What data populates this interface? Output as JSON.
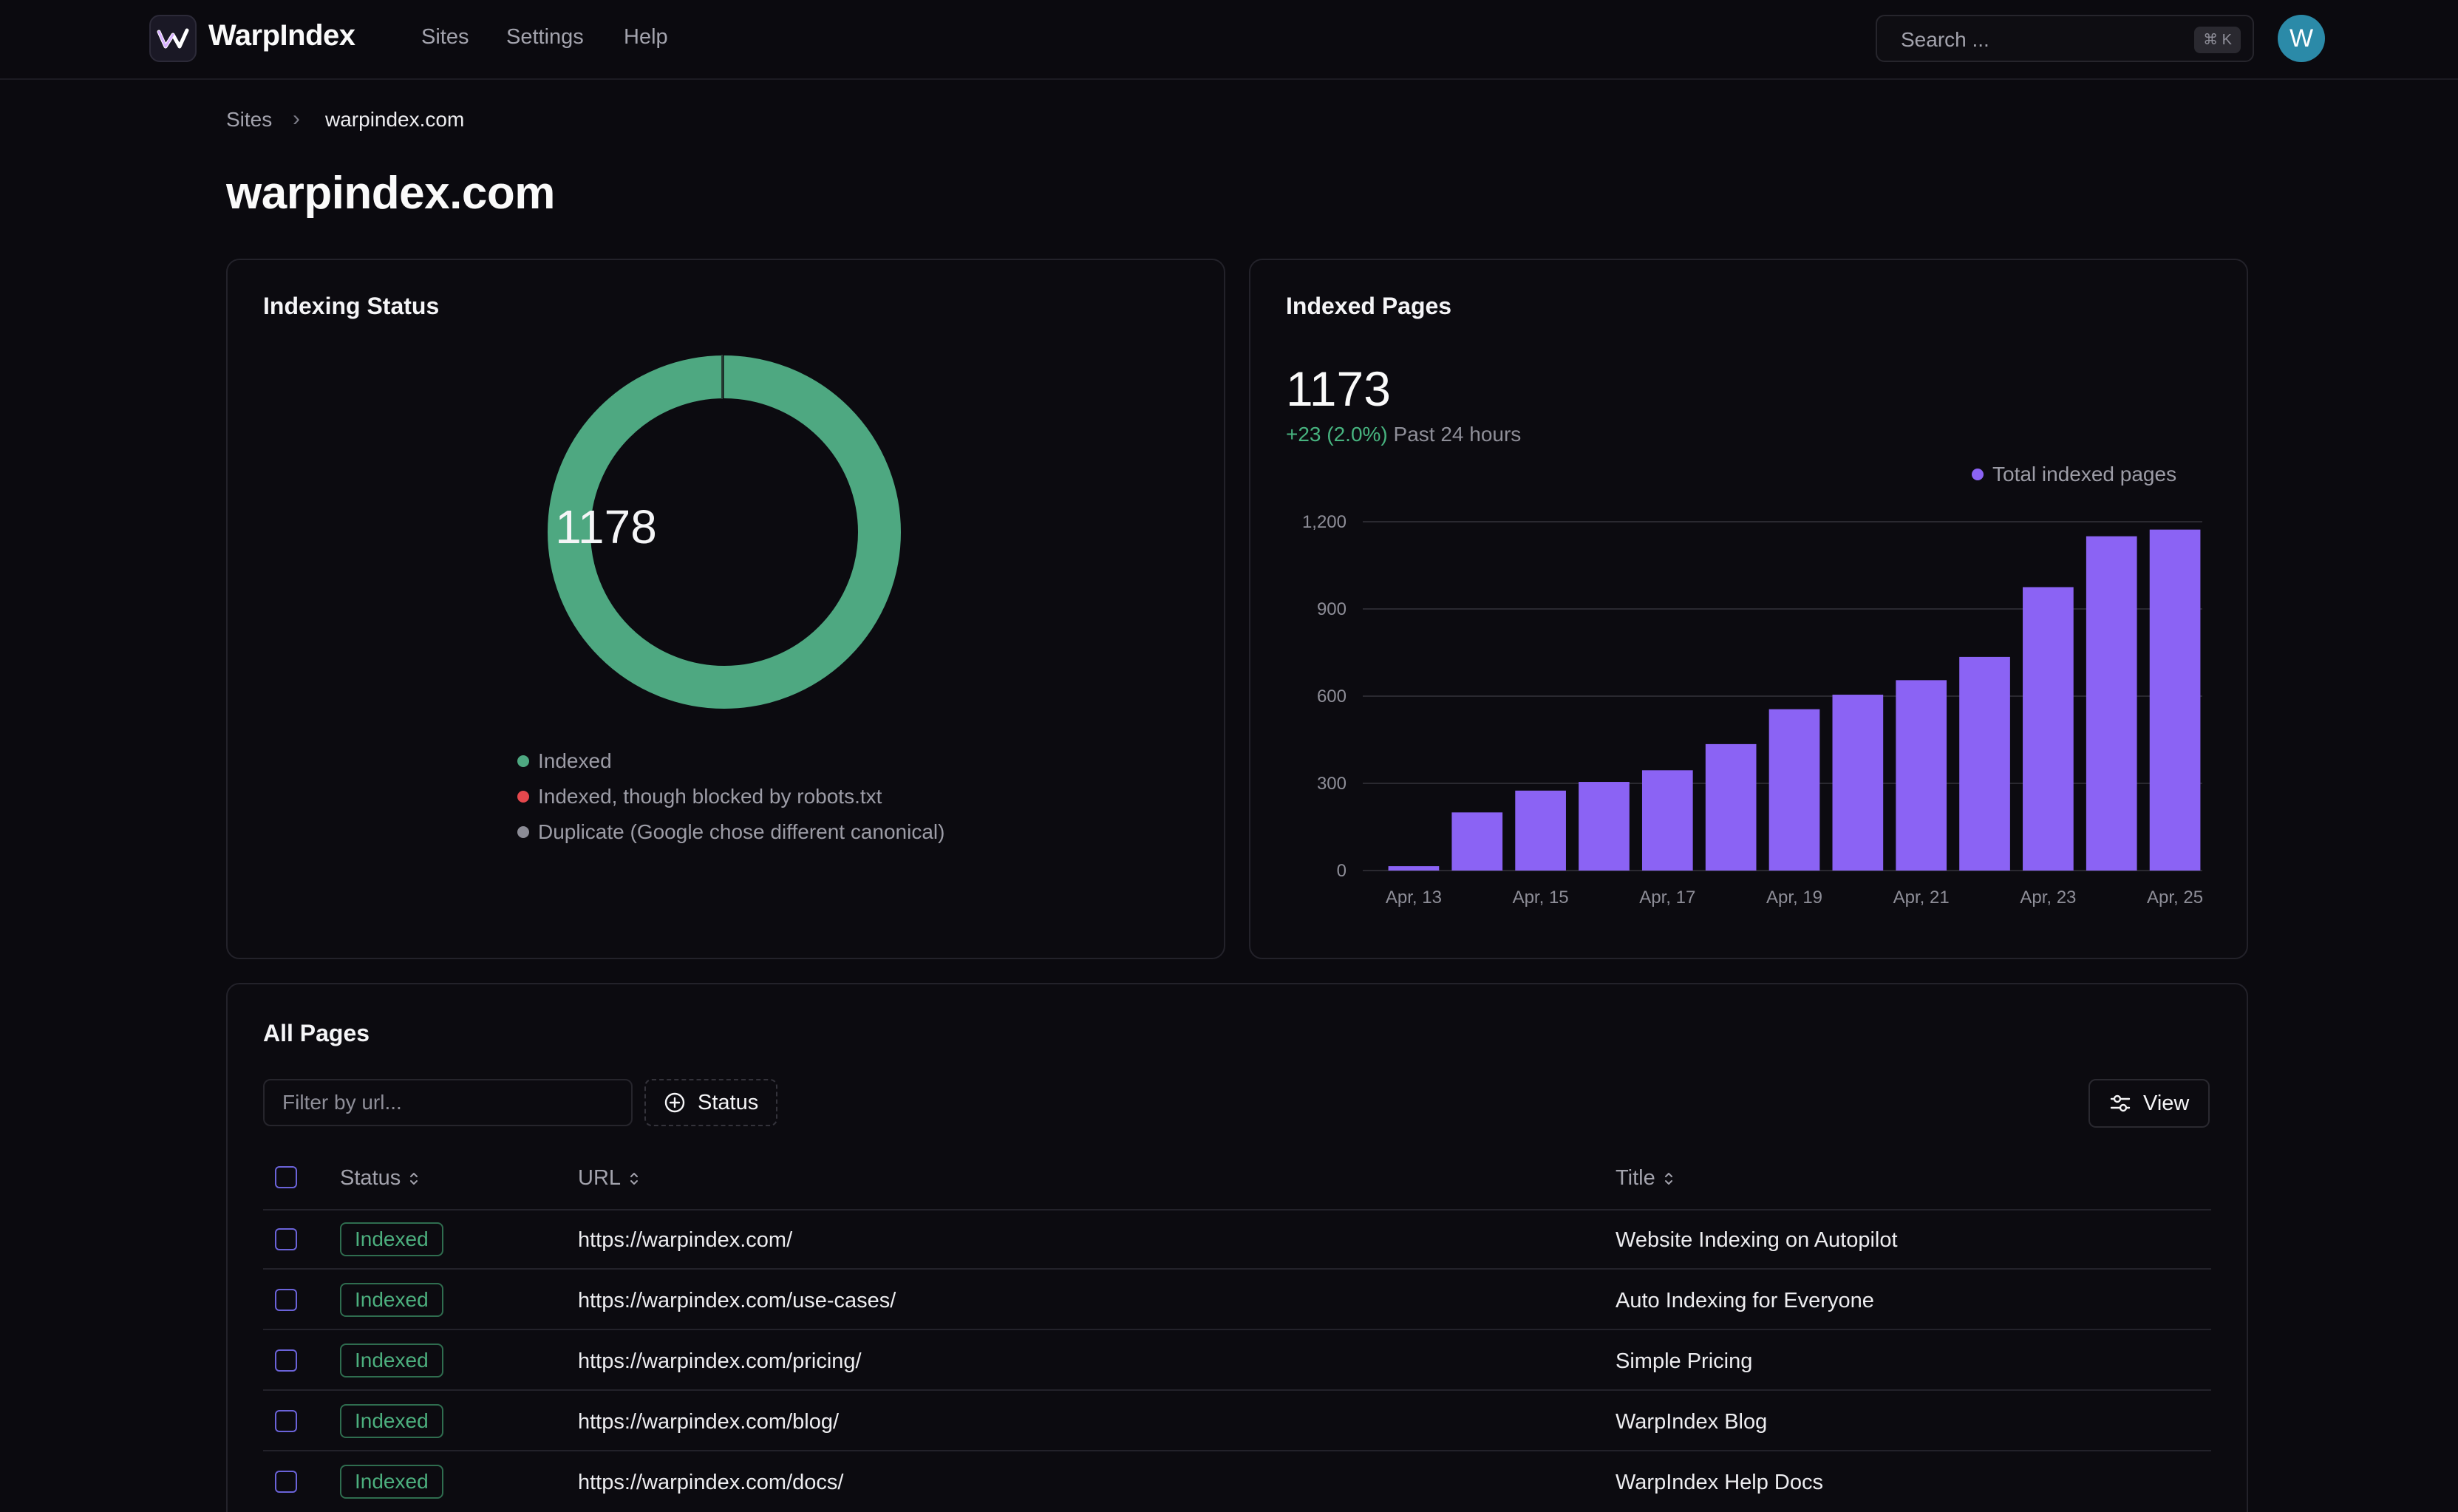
{
  "app": {
    "brand": "WarpIndex",
    "nav": [
      {
        "label": "Sites"
      },
      {
        "label": "Settings"
      },
      {
        "label": "Help"
      }
    ],
    "search": {
      "placeholder": "Search ...",
      "shortcut": "⌘ K"
    },
    "avatar_initial": "W"
  },
  "breadcrumb": {
    "root": "Sites",
    "separator": "›",
    "current": "warpindex.com"
  },
  "page_title": "warpindex.com",
  "indexing_status": {
    "title": "Indexing Status",
    "total": "1178",
    "legend": [
      {
        "label": "Indexed",
        "color": "#4ea881"
      },
      {
        "label": "Indexed, though blocked by robots.txt",
        "color": "#e5484d"
      },
      {
        "label": "Duplicate (Google chose different canonical)",
        "color": "#8c8c96"
      }
    ]
  },
  "indexed_pages": {
    "title": "Indexed Pages",
    "total": "1173",
    "delta": "+23 (2.0%)",
    "delta_suffix": "Past 24 hours",
    "series_label": "Total indexed pages",
    "series_color": "#8b63f4"
  },
  "chart_data": {
    "type": "bar",
    "title": "Indexed Pages",
    "xlabel": "",
    "ylabel": "",
    "ylim": [
      0,
      1200
    ],
    "yticks": [
      "0",
      "300",
      "600",
      "900",
      "1,200"
    ],
    "ytick_values": [
      0,
      300,
      600,
      900,
      1200
    ],
    "categories": [
      "Apr, 13",
      "Apr, 14",
      "Apr, 15",
      "Apr, 16",
      "Apr, 17",
      "Apr, 18",
      "Apr, 19",
      "Apr, 20",
      "Apr, 21",
      "Apr, 22",
      "Apr, 23",
      "Apr, 24",
      "Apr, 25"
    ],
    "xtick_labels": [
      "Apr, 13",
      "Apr, 15",
      "Apr, 17",
      "Apr, 19",
      "Apr, 21",
      "Apr, 23",
      "Apr, 25"
    ],
    "series": [
      {
        "name": "Total indexed pages",
        "values": [
          15,
          200,
          275,
          305,
          345,
          435,
          555,
          605,
          655,
          735,
          975,
          1150,
          1173
        ]
      }
    ],
    "legend": "top-right",
    "grid": true
  },
  "all_pages": {
    "title": "All Pages",
    "filter_placeholder": "Filter by url...",
    "status_button": "Status",
    "view_button": "View",
    "columns": {
      "status": "Status",
      "url": "URL",
      "title": "Title"
    },
    "rows": [
      {
        "status": "Indexed",
        "url": "https://warpindex.com/",
        "title": "Website Indexing on Autopilot"
      },
      {
        "status": "Indexed",
        "url": "https://warpindex.com/use-cases/",
        "title": "Auto Indexing for Everyone"
      },
      {
        "status": "Indexed",
        "url": "https://warpindex.com/pricing/",
        "title": "Simple Pricing"
      },
      {
        "status": "Indexed",
        "url": "https://warpindex.com/blog/",
        "title": "WarpIndex Blog"
      },
      {
        "status": "Indexed",
        "url": "https://warpindex.com/docs/",
        "title": "WarpIndex Help Docs"
      }
    ]
  }
}
